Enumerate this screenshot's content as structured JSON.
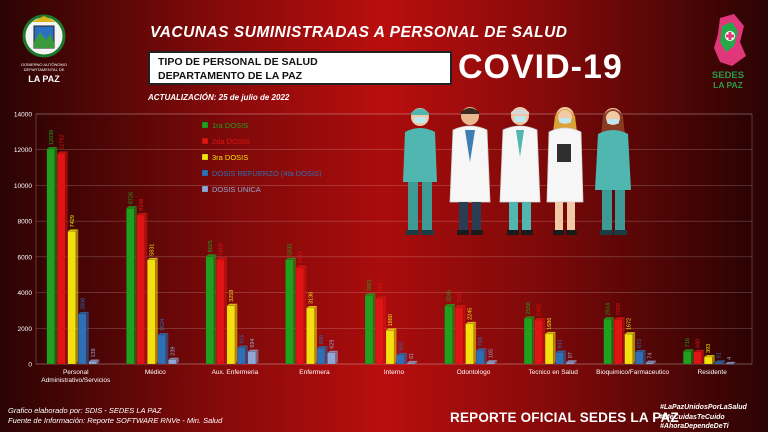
{
  "header": {
    "title": "VACUNAS SUMINISTRADAS A PERSONAL DE SALUD",
    "subtitle_line1": "TIPO DE PERSONAL DE SALUD",
    "subtitle_line2": "DEPARTAMENTO DE LA PAZ",
    "covid_label": "COVID-19",
    "update_text": "ACTUALIZACIÓN: 25 de julio de 2022"
  },
  "logos": {
    "left_text1": "GOBIERNO AUTÓNOMO",
    "left_text2": "DEPARTAMENTAL DE",
    "left_text3": "LA PAZ",
    "right_text1": "SEDES",
    "right_text2": "LA PAZ"
  },
  "footer": {
    "source_line1": "Grafico elaborado por: SDIS - SEDES LA PAZ",
    "source_line2": "Fuente de Información: Reporte SOFTWARE RNVe - Min. Salud",
    "report_label": "REPORTE OFICIAL SEDES LA PAZ",
    "hashtags": [
      "#LaPazUnidosPorLaSalud",
      "#MeCuidasTeCuido",
      "#AhoraDependeDeTi"
    ]
  },
  "colors": {
    "series": [
      "#1fa11f",
      "#e01414",
      "#f2e10e",
      "#2f6fb5",
      "#8fa8d8"
    ],
    "background_accent": "#b90e0e"
  },
  "chart_data": {
    "type": "bar",
    "title": "",
    "xlabel": "",
    "ylabel": "",
    "ylim": [
      0,
      14000
    ],
    "yticks": [
      0,
      2000,
      4000,
      6000,
      8000,
      10000,
      12000,
      14000
    ],
    "grid": true,
    "legend_position": "top-left",
    "categories": [
      "Personal Administrativo/Servicios",
      "Médico",
      "Aux. Enfermeria",
      "Enfermera",
      "Interno",
      "Odontologo",
      "Tecnico en Salud",
      "Bioquimico/Farmaceutico",
      "Residente"
    ],
    "series": [
      {
        "name": "1ra DOSIS",
        "values": [
          12038,
          8726,
          6025,
          5835,
          3851,
          3245,
          2558,
          2514,
          716
        ]
      },
      {
        "name": "2da DOSIS",
        "values": [
          11792,
          8348,
          5860,
          5413,
          3653,
          3182,
          2462,
          2509,
          680
        ]
      },
      {
        "name": "3ra DOSIS",
        "values": [
          7429,
          5831,
          3259,
          3136,
          1880,
          2245,
          1686,
          1672,
          393
        ]
      },
      {
        "name": "DOSIS REFUERZO (4ta DOSIS)",
        "values": [
          2806,
          1624,
          915,
          890,
          510,
          768,
          641,
          672,
          91
        ]
      },
      {
        "name": "DOSIS UNICA",
        "values": [
          138,
          239,
          694,
          629,
          61,
          105,
          97,
          74,
          4
        ]
      }
    ]
  }
}
